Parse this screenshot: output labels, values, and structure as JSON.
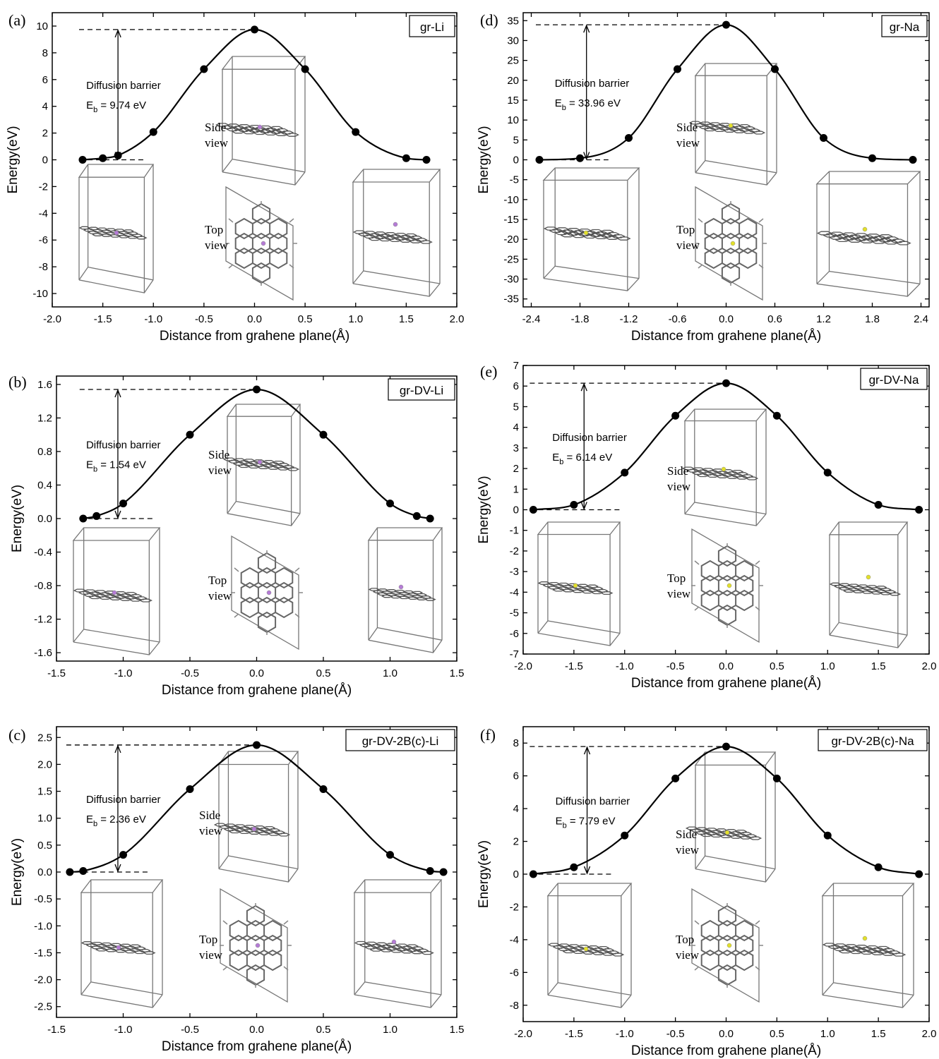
{
  "chart_data": [
    {
      "type": "line",
      "panel_label": "(a)",
      "legend": "gr-Li",
      "xlabel": "Distance from grahene plane(Å)",
      "ylabel": "Energy(eV)",
      "xlim": [
        -2.0,
        2.0
      ],
      "ylim": [
        -11,
        11
      ],
      "xticks": [
        -2.0,
        -1.5,
        -1.0,
        -0.5,
        0.0,
        0.5,
        1.0,
        1.5,
        2.0
      ],
      "yticks": [
        -10,
        -8,
        -6,
        -4,
        -2,
        0,
        2,
        4,
        6,
        8,
        10
      ],
      "tick_decimals": {
        "x": 1,
        "y": 0
      },
      "x": [
        -1.7,
        -1.5,
        -1.35,
        -1.0,
        -0.5,
        0.0,
        0.5,
        1.0,
        1.5,
        1.7
      ],
      "y": [
        0.0,
        0.12,
        0.32,
        2.08,
        6.78,
        9.74,
        6.78,
        2.08,
        0.12,
        0.0
      ],
      "barrier_label": "Diffusion barrier",
      "barrier_symbol": "E",
      "barrier_sub": "b",
      "barrier_value": " = 9.74 eV",
      "barrier_x": -1.35,
      "barrier_ymax": 9.74,
      "dash_left": -1.7,
      "dash_right": -1.1,
      "side_label": [
        "Side",
        "view"
      ],
      "top_label": [
        "Top",
        "view"
      ],
      "atom_color": "#b57bd6"
    },
    {
      "type": "line",
      "panel_label": "(b)",
      "legend": "gr-DV-Li",
      "xlabel": "Distance from grahene plane(Å)",
      "ylabel": "Energy(eV)",
      "xlim": [
        -1.5,
        1.5
      ],
      "ylim": [
        -1.7,
        1.7
      ],
      "xticks": [
        -1.5,
        -1.0,
        -0.5,
        0.0,
        0.5,
        1.0,
        1.5
      ],
      "yticks": [
        -1.6,
        -1.2,
        -0.8,
        -0.4,
        0.0,
        0.4,
        0.8,
        1.2,
        1.6
      ],
      "tick_decimals": {
        "x": 1,
        "y": 1
      },
      "x": [
        -1.3,
        -1.2,
        -1.0,
        -0.5,
        0.0,
        0.5,
        1.0,
        1.2,
        1.3
      ],
      "y": [
        0.0,
        0.03,
        0.18,
        1.0,
        1.54,
        1.0,
        0.18,
        0.03,
        0.0
      ],
      "barrier_label": "Diffusion barrier",
      "barrier_symbol": "E",
      "barrier_sub": "b",
      "barrier_value": " = 1.54 eV",
      "barrier_x": -1.04,
      "barrier_ymax": 1.54,
      "dash_left": -1.3,
      "dash_right": -0.76,
      "side_label": [
        "Side",
        "view"
      ],
      "top_label": [
        "Top",
        "view"
      ],
      "atom_color": "#b57bd6"
    },
    {
      "type": "line",
      "panel_label": "(c)",
      "legend": "gr-DV-2B(c)-Li",
      "xlabel": "Distance from grahene plane(Å)",
      "ylabel": "Energy(eV)",
      "xlim": [
        -1.5,
        1.5
      ],
      "ylim": [
        -2.7,
        2.7
      ],
      "xticks": [
        -1.5,
        -1.0,
        -0.5,
        0.0,
        0.5,
        1.0,
        1.5
      ],
      "yticks": [
        -2.5,
        -2.0,
        -1.5,
        -1.0,
        -0.5,
        0.0,
        0.5,
        1.0,
        1.5,
        2.0,
        2.5
      ],
      "tick_decimals": {
        "x": 1,
        "y": 1
      },
      "x": [
        -1.4,
        -1.3,
        -1.0,
        -0.5,
        0.0,
        0.5,
        1.0,
        1.3,
        1.4
      ],
      "y": [
        0.0,
        0.02,
        0.32,
        1.54,
        2.36,
        1.54,
        0.32,
        0.02,
        0.0
      ],
      "barrier_label": "Diffusion barrier",
      "barrier_symbol": "E",
      "barrier_sub": "b",
      "barrier_value": " = 2.36 eV",
      "barrier_x": -1.04,
      "barrier_ymax": 2.36,
      "dash_left": -1.4,
      "dash_right": -0.8,
      "side_label": [
        "Side",
        "view"
      ],
      "top_label": [
        "Top",
        "view"
      ],
      "atom_color": "#b57bd6"
    },
    {
      "type": "line",
      "panel_label": "(d)",
      "legend": "gr-Na",
      "xlabel": "Distance from grahene plane(Å)",
      "ylabel": "Energy(eV)",
      "xlim": [
        -2.5,
        2.5
      ],
      "ylim": [
        -37,
        37
      ],
      "xticks": [
        -2.4,
        -1.8,
        -1.2,
        -0.6,
        0.0,
        0.6,
        1.2,
        1.8,
        2.4
      ],
      "yticks": [
        -35,
        -30,
        -25,
        -20,
        -15,
        -10,
        -5,
        0,
        5,
        10,
        15,
        20,
        25,
        30,
        35
      ],
      "tick_decimals": {
        "x": 1,
        "y": 0
      },
      "x": [
        -2.3,
        -1.8,
        -1.2,
        -0.6,
        0.0,
        0.6,
        1.2,
        1.8,
        2.3
      ],
      "y": [
        0.0,
        0.4,
        5.5,
        22.8,
        33.96,
        22.8,
        5.5,
        0.4,
        0.0
      ],
      "barrier_label": "Diffusion barrier",
      "barrier_symbol": "E",
      "barrier_sub": "b",
      "barrier_value": " = 33.96 eV",
      "barrier_x": -1.72,
      "barrier_ymax": 33.96,
      "dash_left": -2.3,
      "dash_right": -1.45,
      "side_label": [
        "Side",
        "view"
      ],
      "top_label": [
        "Top",
        "view"
      ],
      "atom_color": "#e3e02a"
    },
    {
      "type": "line",
      "panel_label": "(e)",
      "legend": "gr-DV-Na",
      "xlabel": "Distance from grahene plane(Å)",
      "ylabel": "Energy(eV)",
      "xlim": [
        -2.0,
        2.0
      ],
      "ylim": [
        -7,
        7
      ],
      "xticks": [
        -2.0,
        -1.5,
        -1.0,
        -0.5,
        0.0,
        0.5,
        1.0,
        1.5,
        2.0
      ],
      "yticks": [
        -7,
        -6,
        -5,
        -4,
        -3,
        -2,
        -1,
        0,
        1,
        2,
        3,
        4,
        5,
        6,
        7
      ],
      "tick_decimals": {
        "x": 1,
        "y": 0
      },
      "x": [
        -1.9,
        -1.5,
        -1.0,
        -0.5,
        0.0,
        0.5,
        1.0,
        1.5,
        1.9
      ],
      "y": [
        0.0,
        0.24,
        1.8,
        4.56,
        6.14,
        4.56,
        1.8,
        0.24,
        0.0
      ],
      "barrier_label": "Diffusion barrier",
      "barrier_symbol": "E",
      "barrier_sub": "b",
      "barrier_value": " = 6.14 eV",
      "barrier_x": -1.4,
      "barrier_ymax": 6.14,
      "dash_left": -1.9,
      "dash_right": -1.05,
      "side_label": [
        "Side",
        "view"
      ],
      "top_label": [
        "Top",
        "view"
      ],
      "atom_color": "#e3e02a"
    },
    {
      "type": "line",
      "panel_label": "(f)",
      "legend": "gr-DV-2B(c)-Na",
      "xlabel": "Distance from grahene plane(Å)",
      "ylabel": "Energy(eV)",
      "xlim": [
        -2.0,
        2.0
      ],
      "ylim": [
        -9,
        9
      ],
      "xticks": [
        -2.0,
        -1.5,
        -1.0,
        -0.5,
        0.0,
        0.5,
        1.0,
        1.5,
        2.0
      ],
      "yticks": [
        -8,
        -6,
        -4,
        -2,
        0,
        2,
        4,
        6,
        8
      ],
      "tick_decimals": {
        "x": 1,
        "y": 0
      },
      "x": [
        -1.9,
        -1.5,
        -1.0,
        -0.5,
        0.0,
        0.5,
        1.0,
        1.5,
        1.9
      ],
      "y": [
        0.0,
        0.42,
        2.36,
        5.84,
        7.79,
        5.84,
        2.36,
        0.42,
        0.0
      ],
      "barrier_label": "Diffusion barrier",
      "barrier_symbol": "E",
      "barrier_sub": "b",
      "barrier_value": " = 7.79 eV",
      "barrier_x": -1.37,
      "barrier_ymax": 7.79,
      "dash_left": -1.9,
      "dash_right": -1.1,
      "side_label": [
        "Side",
        "view"
      ],
      "top_label": [
        "Top",
        "view"
      ],
      "atom_color": "#e3e02a"
    }
  ]
}
